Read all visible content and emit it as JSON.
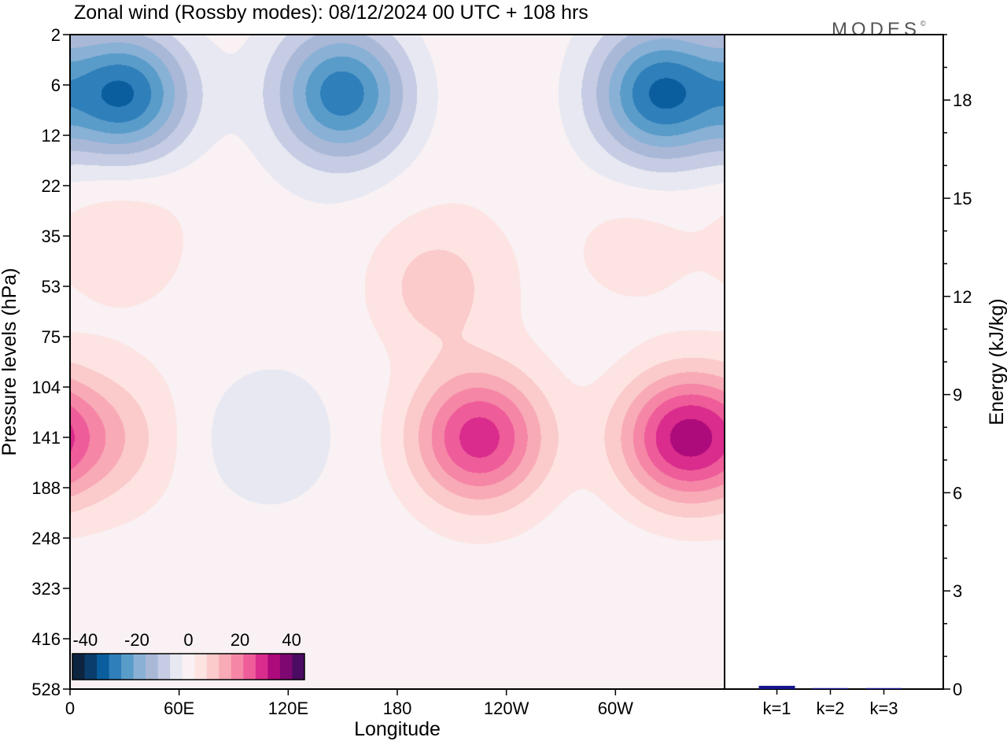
{
  "chart_data": [
    {
      "type": "heatmap",
      "title": "Zonal wind (Rossby modes):  08/12/2024  00 UTC  + 108 hrs",
      "xlabel": "Longitude",
      "ylabel": "Pressure levels (hPa)",
      "x_ticks": [
        "0",
        "60E",
        "120E",
        "180",
        "120W",
        "60W"
      ],
      "x_tick_lon": [
        0,
        60,
        120,
        180,
        240,
        300
      ],
      "xlim": [
        0,
        360
      ],
      "y_levels": [
        2,
        6,
        12,
        22,
        35,
        53,
        75,
        104,
        141,
        188,
        248,
        323,
        416,
        528
      ],
      "y_ticks": [
        "2",
        "6",
        "12",
        "22",
        "35",
        "53",
        "75",
        "104",
        "141",
        "188",
        "248",
        "323",
        "416",
        "528"
      ],
      "colorbar": {
        "ticks": [
          "-40",
          "-20",
          "0",
          "20",
          "40"
        ],
        "tick_values": [
          -40,
          -20,
          0,
          20,
          40
        ],
        "vmin": -45,
        "vmax": 45,
        "colors": [
          "#0d2440",
          "#0a3d6b",
          "#0b5e9e",
          "#2e7fba",
          "#5a9cc9",
          "#89b1d6",
          "#aab8d8",
          "#c5cce3",
          "#e7e8f2",
          "#f9f1f3",
          "#fde4e3",
          "#fbcaca",
          "#f8aab6",
          "#f586a6",
          "#ef5c9a",
          "#d92c8c",
          "#ad0a7c",
          "#7e0872",
          "#4b0b62"
        ]
      },
      "features": [
        {
          "lon": 30,
          "p": 7,
          "u": -32
        },
        {
          "lon": 150,
          "p": 7,
          "u": -28
        },
        {
          "lon": 325,
          "p": 7,
          "u": -30
        },
        {
          "lon": 225,
          "p": 141,
          "u": 28
        },
        {
          "lon": 338,
          "p": 141,
          "u": 32
        },
        {
          "lon": 22,
          "p": 141,
          "u": 8
        },
        {
          "lon": 105,
          "p": 141,
          "u": -6
        },
        {
          "lon": 200,
          "p": 53,
          "u": 9
        },
        {
          "lon": 310,
          "p": 40,
          "u": 5
        },
        {
          "lon": 25,
          "p": 35,
          "u": 5
        }
      ]
    },
    {
      "type": "bar",
      "categories": [
        "k=1",
        "k=2",
        "k=3"
      ],
      "values": [
        0.1,
        0.03,
        0.03
      ],
      "ylabel": "Energy (kJ/kg)",
      "ylim": [
        0,
        20
      ],
      "yticks": [
        0,
        3,
        6,
        9,
        12,
        15,
        18
      ],
      "bar_color": "#14148c"
    }
  ],
  "logo": {
    "text": "MODES",
    "mark": "©"
  }
}
